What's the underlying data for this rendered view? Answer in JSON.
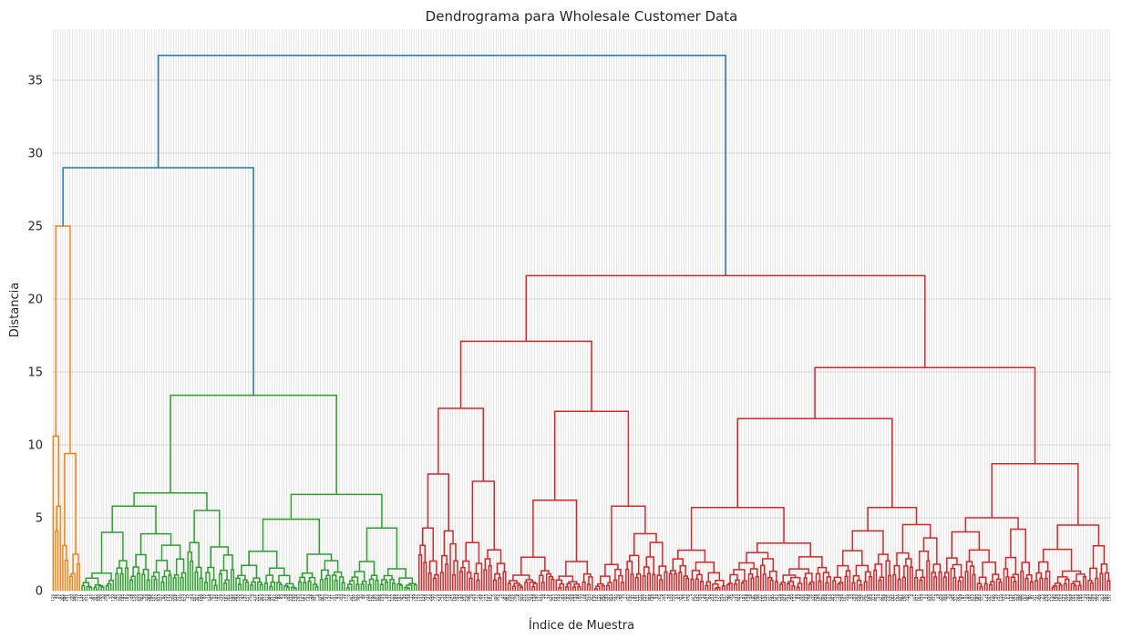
{
  "chart_data": {
    "type": "dendrogram",
    "title": "Dendrograma para Wholesale Customer Data",
    "xlabel": "Índice de Muestra",
    "ylabel": "Distancia",
    "ylim": [
      0,
      38.5
    ],
    "yticks": [
      0,
      5,
      10,
      15,
      20,
      25,
      30,
      35
    ],
    "grid": true,
    "leaf_count": 440,
    "colors": {
      "above_threshold": "#1f77b4",
      "cluster_1": "#ff7f0e",
      "cluster_2": "#2ca02c",
      "cluster_3": "#d62728",
      "grid": "#cccccc"
    },
    "clusters": [
      {
        "name": "cluster_1",
        "color": "#ff7f0e",
        "leaves": 12,
        "merge_height": 25.0,
        "sub_heights": [
          10.6,
          9.4,
          6.4,
          5.8,
          3.1,
          2.5,
          1.4,
          0.9
        ]
      },
      {
        "name": "cluster_2",
        "color": "#2ca02c",
        "leaves": 140,
        "merge_height": 13.4,
        "sub_heights": [
          6.7,
          6.6,
          5.8,
          5.5,
          4.9,
          4.3,
          4.0,
          3.9,
          3.3,
          3.0,
          2.7,
          2.5,
          2.0,
          1.5,
          1.2
        ]
      },
      {
        "name": "cluster_3",
        "color": "#d62728",
        "leaves": 288,
        "merge_height": 21.6,
        "sub_heights": [
          17.1,
          15.3,
          12.5,
          12.3,
          11.8,
          8.7,
          8.0,
          7.5,
          6.2,
          5.8,
          5.7,
          5.7,
          5.0,
          4.5,
          4.3,
          4.1,
          3.3,
          2.8,
          2.3,
          2.0,
          1.8
        ]
      }
    ],
    "top_merges": [
      {
        "height": 29.0,
        "joins": [
          "cluster_1",
          "cluster_2"
        ]
      },
      {
        "height": 36.7,
        "joins": [
          "cluster_1+cluster_2",
          "cluster_3"
        ]
      }
    ]
  }
}
